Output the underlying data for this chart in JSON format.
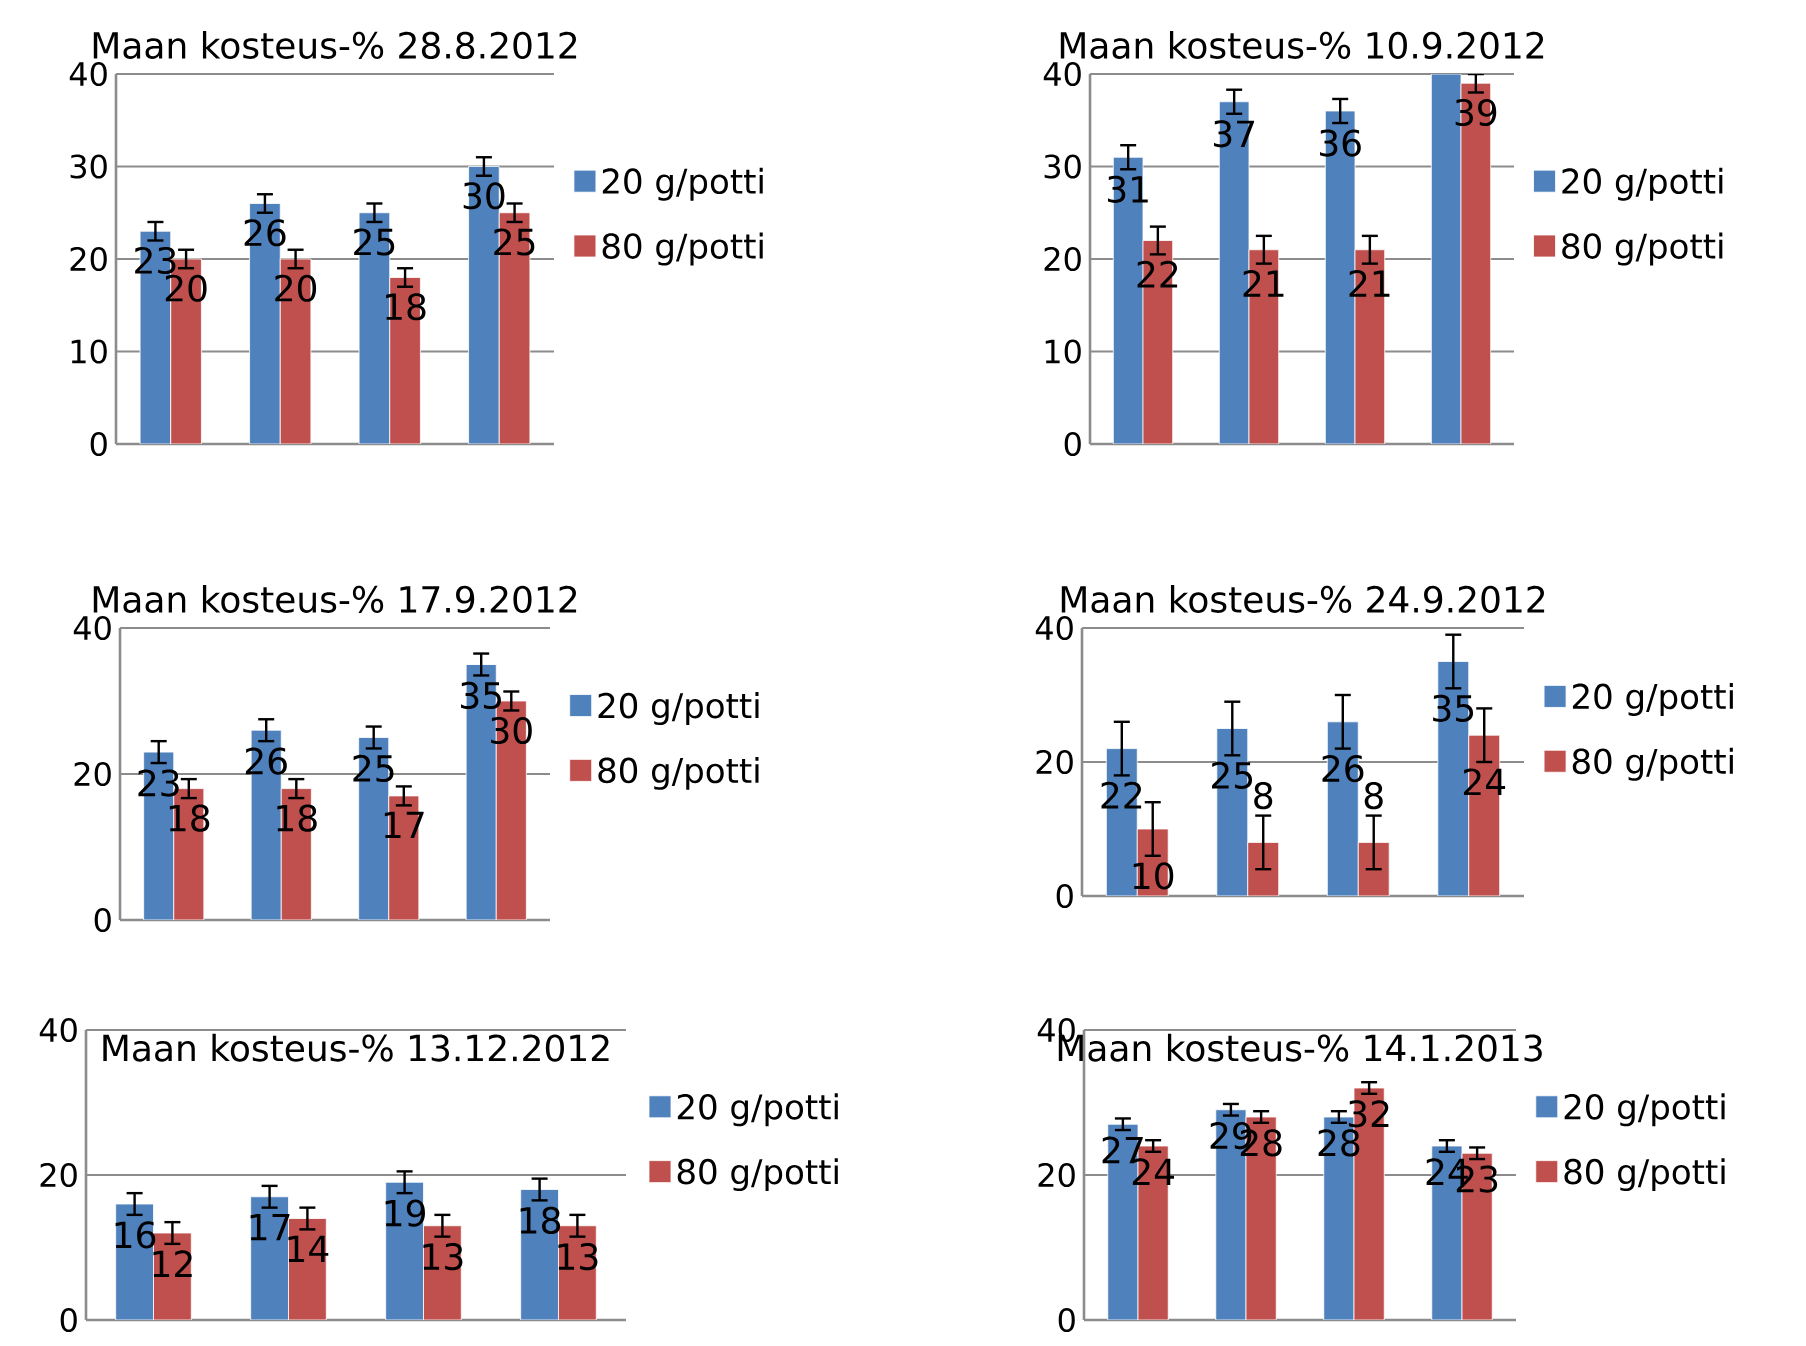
{
  "chart_data": [
    {
      "type": "bar",
      "title": "Maan kosteus-% 28.8.2012",
      "categories": [
        null,
        null,
        null,
        null
      ],
      "ylim": [
        0,
        40
      ],
      "yticks": [
        0,
        10,
        20,
        30,
        40
      ],
      "grid": "y",
      "legend": "right",
      "series": [
        {
          "name": "20 g/potti",
          "color": "#4f81bd",
          "values": [
            23,
            26,
            25,
            30
          ],
          "errors": [
            1,
            1,
            1,
            1
          ],
          "value_labels": [
            "23",
            "26",
            "25",
            "30"
          ]
        },
        {
          "name": "80 g/potti",
          "color": "#c0504d",
          "values": [
            20,
            20,
            18,
            25
          ],
          "errors": [
            1,
            1,
            1,
            1
          ],
          "value_labels": [
            "20",
            "20",
            "18",
            "25"
          ]
        }
      ]
    },
    {
      "type": "bar",
      "title": "Maan kosteus-%  10.9.2012",
      "categories": [
        null,
        null,
        null,
        null
      ],
      "ylim": [
        0,
        40
      ],
      "yticks": [
        0,
        10,
        20,
        30,
        40
      ],
      "grid": "y",
      "legend": "right",
      "series": [
        {
          "name": "20 g/potti",
          "color": "#4f81bd",
          "values": [
            31,
            37,
            36,
            40
          ],
          "errors": [
            1.3,
            1.3,
            1.3,
            null
          ],
          "value_labels": [
            "31",
            "37",
            "36",
            null
          ]
        },
        {
          "name": "80 g/potti",
          "color": "#c0504d",
          "values": [
            22,
            21,
            21,
            39
          ],
          "errors": [
            1.5,
            1.5,
            1.5,
            1
          ],
          "value_labels": [
            "22",
            "21",
            "21",
            "39"
          ]
        }
      ]
    },
    {
      "type": "bar",
      "title": "Maan kosteus-%  17.9.2012",
      "categories": [
        null,
        null,
        null,
        null
      ],
      "ylim": [
        0,
        40
      ],
      "yticks": [
        0,
        20,
        40
      ],
      "grid": "y",
      "legend": "right",
      "series": [
        {
          "name": "20 g/potti",
          "color": "#4f81bd",
          "values": [
            23,
            26,
            25,
            35
          ],
          "errors": [
            1.5,
            1.5,
            1.5,
            1.5
          ],
          "value_labels": [
            "23",
            "26",
            "25",
            "35"
          ]
        },
        {
          "name": "80 g/potti",
          "color": "#c0504d",
          "values": [
            18,
            18,
            17,
            30
          ],
          "errors": [
            1.3,
            1.3,
            1.3,
            1.3
          ],
          "value_labels": [
            "18",
            "18",
            "17",
            "30"
          ]
        }
      ]
    },
    {
      "type": "bar",
      "title": "Maan kosteus-%  24.9.2012",
      "categories": [
        null,
        null,
        null,
        null
      ],
      "ylim": [
        0,
        40
      ],
      "yticks": [
        0,
        20,
        40
      ],
      "grid": "y",
      "legend": "right",
      "series": [
        {
          "name": "20 g/potti",
          "color": "#4f81bd",
          "values": [
            22,
            25,
            26,
            35
          ],
          "errors": [
            4,
            4,
            4,
            4
          ],
          "value_labels": [
            "22",
            "25",
            "26",
            "35"
          ]
        },
        {
          "name": "80 g/potti",
          "color": "#c0504d",
          "values": [
            10,
            8,
            8,
            24
          ],
          "errors": [
            4,
            4,
            4,
            4
          ],
          "value_labels": [
            "10",
            "8",
            "8",
            "24"
          ]
        }
      ]
    },
    {
      "type": "bar",
      "title": "Maan kosteus-%  13.12.2012",
      "categories": [
        null,
        null,
        null,
        null
      ],
      "ylim": [
        0,
        40
      ],
      "yticks": [
        0,
        20,
        40
      ],
      "grid": "y",
      "legend": "right",
      "series": [
        {
          "name": "20 g/potti",
          "color": "#4f81bd",
          "values": [
            16,
            17,
            19,
            18
          ],
          "errors": [
            1.5,
            1.5,
            1.5,
            1.5
          ],
          "value_labels": [
            "16",
            "17",
            "19",
            "18"
          ]
        },
        {
          "name": "80 g/potti",
          "color": "#c0504d",
          "values": [
            12,
            14,
            13,
            13
          ],
          "errors": [
            1.5,
            1.5,
            1.5,
            1.5
          ],
          "value_labels": [
            "12",
            "14",
            "13",
            "13"
          ]
        }
      ]
    },
    {
      "type": "bar",
      "title": "Maan kosteus-% 14.1.2013",
      "categories": [
        null,
        null,
        null,
        null
      ],
      "ylim": [
        0,
        40
      ],
      "yticks": [
        0,
        20,
        40
      ],
      "grid": "y",
      "legend": "right",
      "series": [
        {
          "name": "20 g/potti",
          "color": "#4f81bd",
          "values": [
            27,
            29,
            28,
            24
          ],
          "errors": [
            0.8,
            0.8,
            0.8,
            0.8
          ],
          "value_labels": [
            "27",
            "29",
            "28",
            "24"
          ]
        },
        {
          "name": "80 g/potti",
          "color": "#c0504d",
          "values": [
            24,
            28,
            32,
            23
          ],
          "errors": [
            0.8,
            0.8,
            0.8,
            0.8
          ],
          "value_labels": [
            "24",
            "28",
            "32",
            "23"
          ]
        }
      ]
    }
  ]
}
